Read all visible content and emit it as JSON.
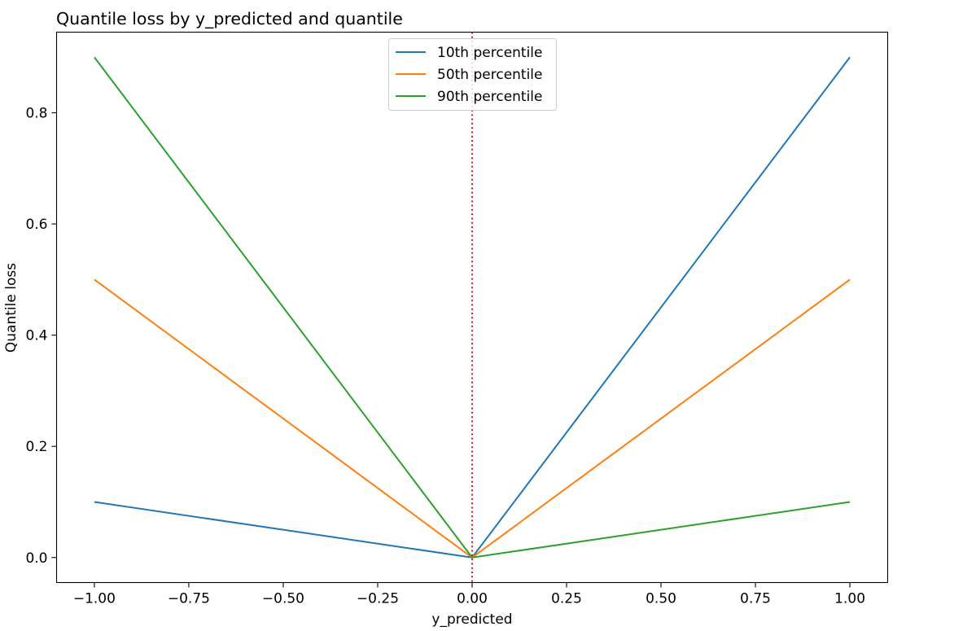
{
  "chart_data": {
    "type": "line",
    "title": "Quantile loss by y_predicted and quantile",
    "xlabel": "y_predicted",
    "ylabel": "Quantile loss",
    "xlim": [
      -1.1,
      1.1
    ],
    "ylim": [
      -0.045,
      0.945
    ],
    "x_ticks": [
      -1.0,
      -0.75,
      -0.5,
      -0.25,
      0.0,
      0.25,
      0.5,
      0.75,
      1.0
    ],
    "x_tick_labels": [
      "−1.00",
      "−0.75",
      "−0.50",
      "−0.25",
      "0.00",
      "0.25",
      "0.50",
      "0.75",
      "1.00"
    ],
    "y_ticks": [
      0.0,
      0.2,
      0.4,
      0.6,
      0.8
    ],
    "y_tick_labels": [
      "0.0",
      "0.2",
      "0.4",
      "0.6",
      "0.8"
    ],
    "grid": false,
    "legend_position": "upper-center",
    "x": [
      -1.0,
      0.0,
      1.0
    ],
    "series": [
      {
        "name": "10th percentile",
        "color": "#1f77b4",
        "values": [
          0.1,
          0.0,
          0.9
        ]
      },
      {
        "name": "50th percentile",
        "color": "#ff7f0e",
        "values": [
          0.5,
          0.0,
          0.5
        ]
      },
      {
        "name": "90th percentile",
        "color": "#2ca02c",
        "values": [
          0.9,
          0.0,
          0.1
        ]
      }
    ],
    "reference_line": {
      "orientation": "vertical",
      "x": 0.0,
      "color": "#e41a1c",
      "style": "dotted"
    }
  }
}
